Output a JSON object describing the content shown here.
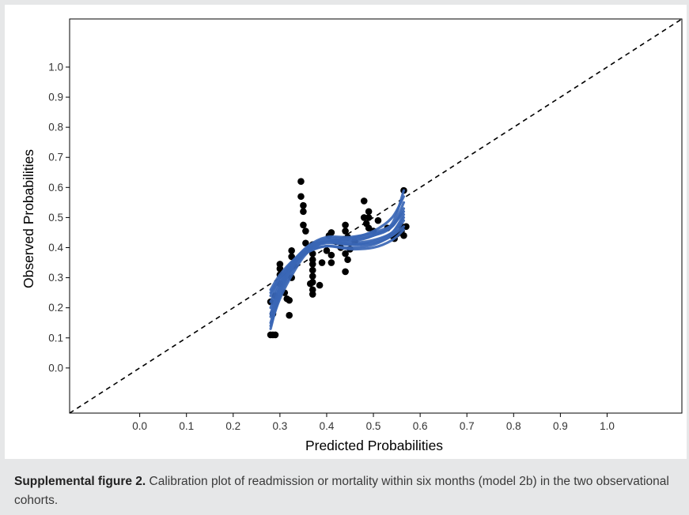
{
  "caption": {
    "label": "Supplemental figure 2.",
    "text": "Calibration plot of readmission or mortality within six months (model 2b) in the two observational cohorts."
  },
  "chart_data": {
    "type": "scatter",
    "title": "",
    "xlabel": "Predicted Probabilities",
    "ylabel": "Observed Probabilities",
    "xlim": [
      -0.15,
      1.16
    ],
    "ylim": [
      -0.15,
      1.16
    ],
    "x_ticks": [
      "0.0",
      "0.1",
      "0.2",
      "0.3",
      "0.4",
      "0.5",
      "0.6",
      "0.7",
      "0.8",
      "0.9",
      "1.0"
    ],
    "y_ticks": [
      "0.0",
      "0.1",
      "0.2",
      "0.3",
      "0.4",
      "0.5",
      "0.6",
      "0.7",
      "0.8",
      "0.9",
      "1.0"
    ],
    "grid": false,
    "reference_line": {
      "style": "dashed",
      "from": [
        -0.15,
        -0.15
      ],
      "to": [
        1.16,
        1.16
      ]
    },
    "colors": {
      "points": "#000000",
      "curves": "#3a66b5",
      "reference": "#000000"
    },
    "points": [
      [
        0.28,
        0.11
      ],
      [
        0.285,
        0.11
      ],
      [
        0.29,
        0.11
      ],
      [
        0.28,
        0.22
      ],
      [
        0.285,
        0.18
      ],
      [
        0.29,
        0.24
      ],
      [
        0.3,
        0.28
      ],
      [
        0.3,
        0.31
      ],
      [
        0.3,
        0.33
      ],
      [
        0.3,
        0.345
      ],
      [
        0.31,
        0.25
      ],
      [
        0.315,
        0.23
      ],
      [
        0.32,
        0.175
      ],
      [
        0.32,
        0.225
      ],
      [
        0.325,
        0.3
      ],
      [
        0.325,
        0.37
      ],
      [
        0.325,
        0.39
      ],
      [
        0.33,
        0.34
      ],
      [
        0.345,
        0.62
      ],
      [
        0.345,
        0.57
      ],
      [
        0.35,
        0.475
      ],
      [
        0.35,
        0.54
      ],
      [
        0.35,
        0.52
      ],
      [
        0.355,
        0.455
      ],
      [
        0.355,
        0.415
      ],
      [
        0.365,
        0.28
      ],
      [
        0.37,
        0.245
      ],
      [
        0.37,
        0.26
      ],
      [
        0.37,
        0.285
      ],
      [
        0.37,
        0.305
      ],
      [
        0.37,
        0.325
      ],
      [
        0.37,
        0.345
      ],
      [
        0.37,
        0.36
      ],
      [
        0.37,
        0.38
      ],
      [
        0.37,
        0.41
      ],
      [
        0.385,
        0.275
      ],
      [
        0.39,
        0.35
      ],
      [
        0.4,
        0.39
      ],
      [
        0.405,
        0.44
      ],
      [
        0.41,
        0.375
      ],
      [
        0.41,
        0.35
      ],
      [
        0.41,
        0.45
      ],
      [
        0.42,
        0.42
      ],
      [
        0.43,
        0.4
      ],
      [
        0.44,
        0.38
      ],
      [
        0.44,
        0.32
      ],
      [
        0.44,
        0.455
      ],
      [
        0.44,
        0.475
      ],
      [
        0.445,
        0.435
      ],
      [
        0.445,
        0.36
      ],
      [
        0.45,
        0.395
      ],
      [
        0.46,
        0.42
      ],
      [
        0.48,
        0.555
      ],
      [
        0.48,
        0.5
      ],
      [
        0.485,
        0.48
      ],
      [
        0.49,
        0.465
      ],
      [
        0.49,
        0.5
      ],
      [
        0.49,
        0.52
      ],
      [
        0.5,
        0.455
      ],
      [
        0.51,
        0.49
      ],
      [
        0.53,
        0.465
      ],
      [
        0.54,
        0.44
      ],
      [
        0.545,
        0.43
      ],
      [
        0.55,
        0.445
      ],
      [
        0.555,
        0.45
      ],
      [
        0.56,
        0.47
      ],
      [
        0.56,
        0.455
      ],
      [
        0.565,
        0.44
      ],
      [
        0.57,
        0.47
      ],
      [
        0.565,
        0.59
      ]
    ],
    "series": [
      {
        "x": [
          0.28,
          0.3,
          0.33,
          0.36,
          0.4,
          0.45,
          0.5,
          0.54,
          0.565
        ],
        "y": [
          0.13,
          0.24,
          0.33,
          0.39,
          0.42,
          0.42,
          0.44,
          0.48,
          0.59
        ]
      },
      {
        "x": [
          0.28,
          0.3,
          0.33,
          0.36,
          0.4,
          0.45,
          0.5,
          0.54,
          0.565
        ],
        "y": [
          0.15,
          0.25,
          0.34,
          0.395,
          0.425,
          0.425,
          0.44,
          0.47,
          0.55
        ]
      },
      {
        "x": [
          0.28,
          0.3,
          0.33,
          0.36,
          0.4,
          0.45,
          0.5,
          0.54,
          0.565
        ],
        "y": [
          0.18,
          0.27,
          0.35,
          0.4,
          0.42,
          0.41,
          0.42,
          0.45,
          0.51
        ]
      },
      {
        "x": [
          0.28,
          0.3,
          0.33,
          0.36,
          0.4,
          0.45,
          0.5,
          0.54,
          0.565
        ],
        "y": [
          0.22,
          0.29,
          0.35,
          0.395,
          0.415,
          0.41,
          0.415,
          0.44,
          0.49
        ]
      },
      {
        "x": [
          0.28,
          0.3,
          0.33,
          0.36,
          0.4,
          0.45,
          0.5,
          0.54,
          0.565
        ],
        "y": [
          0.24,
          0.3,
          0.36,
          0.4,
          0.42,
          0.415,
          0.425,
          0.45,
          0.5
        ]
      },
      {
        "x": [
          0.28,
          0.3,
          0.33,
          0.36,
          0.4,
          0.45,
          0.5,
          0.54,
          0.565
        ],
        "y": [
          0.26,
          0.31,
          0.36,
          0.39,
          0.405,
          0.4,
          0.41,
          0.44,
          0.47
        ]
      },
      {
        "x": [
          0.28,
          0.3,
          0.33,
          0.36,
          0.4,
          0.45,
          0.5,
          0.54,
          0.565
        ],
        "y": [
          0.14,
          0.23,
          0.32,
          0.385,
          0.42,
          0.43,
          0.455,
          0.5,
          0.57
        ]
      },
      {
        "x": [
          0.28,
          0.3,
          0.33,
          0.36,
          0.4,
          0.45,
          0.5,
          0.54,
          0.565
        ],
        "y": [
          0.2,
          0.28,
          0.355,
          0.405,
          0.435,
          0.435,
          0.45,
          0.475,
          0.52
        ]
      },
      {
        "x": [
          0.28,
          0.3,
          0.33,
          0.36,
          0.4,
          0.45,
          0.5,
          0.54,
          0.565
        ],
        "y": [
          0.25,
          0.3,
          0.35,
          0.385,
          0.405,
          0.395,
          0.4,
          0.425,
          0.46
        ]
      },
      {
        "x": [
          0.28,
          0.3,
          0.33,
          0.36,
          0.4,
          0.45,
          0.5,
          0.54,
          0.565
        ],
        "y": [
          0.17,
          0.26,
          0.345,
          0.4,
          0.43,
          0.43,
          0.445,
          0.47,
          0.53
        ]
      }
    ]
  }
}
